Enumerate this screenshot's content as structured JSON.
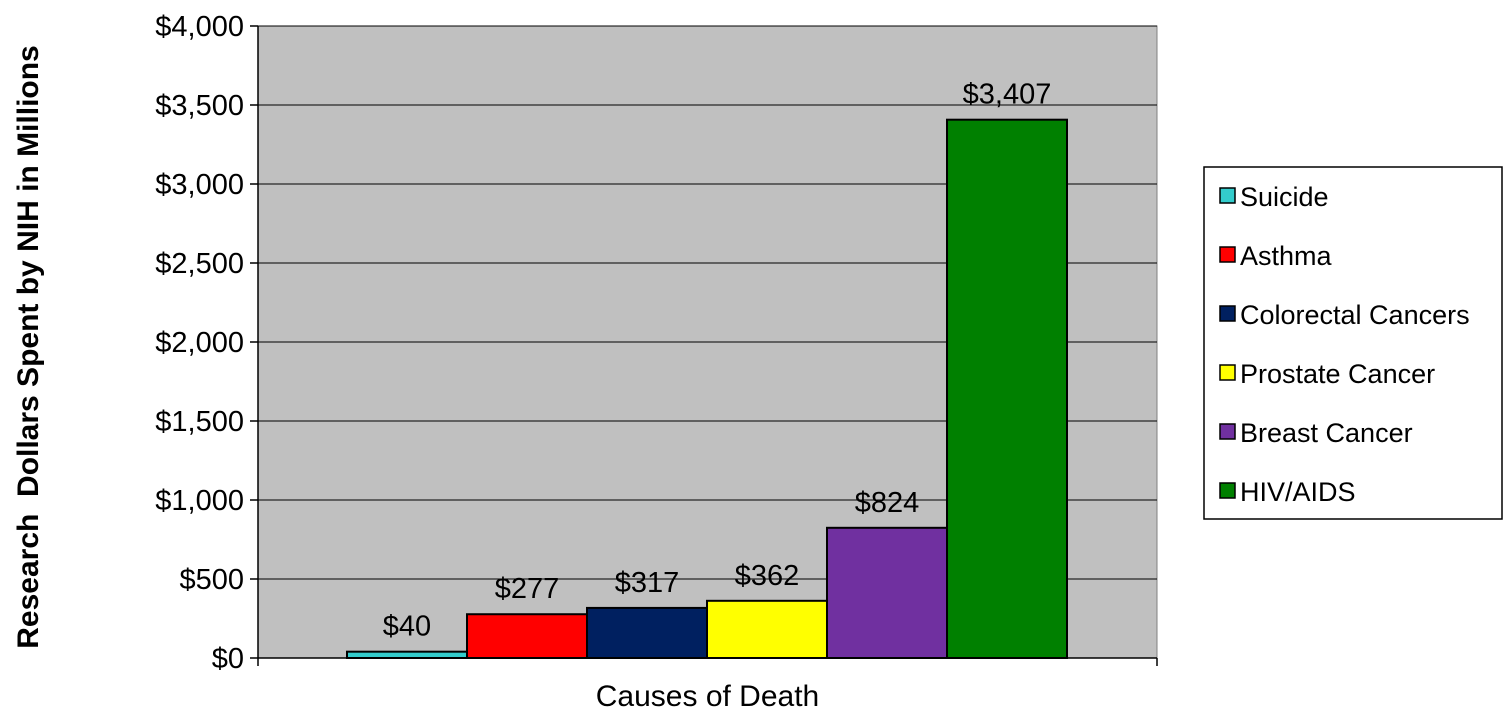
{
  "chart_data": {
    "type": "bar",
    "xlabel": "Causes of Death",
    "ylabel": "Research  Dollars Spent by NIH in Millions",
    "ylim": [
      0,
      4000
    ],
    "ytick_values": [
      0,
      500,
      1000,
      1500,
      2000,
      2500,
      3000,
      3500,
      4000
    ],
    "ytick_labels": [
      "$0",
      "$500",
      "$1,000",
      "$1,500",
      "$2,000",
      "$2,500",
      "$3,000",
      "$3,500",
      "$4,000"
    ],
    "grid": true,
    "plot_background": "#c0c0c0",
    "legend_position": "right",
    "series": [
      {
        "name": "Suicide",
        "value": 40,
        "label": "$40",
        "color": "#33cccc"
      },
      {
        "name": "Asthma",
        "value": 277,
        "label": "$277",
        "color": "#ff0000"
      },
      {
        "name": "Colorectal Cancers",
        "value": 317,
        "label": "$317",
        "color": "#002060"
      },
      {
        "name": "Prostate Cancer",
        "value": 362,
        "label": "$362",
        "color": "#ffff00"
      },
      {
        "name": "Breast Cancer",
        "value": 824,
        "label": "$824",
        "color": "#7030a0"
      },
      {
        "name": "HIV/AIDS",
        "value": 3407,
        "label": "$3,407",
        "color": "#008000"
      }
    ]
  }
}
